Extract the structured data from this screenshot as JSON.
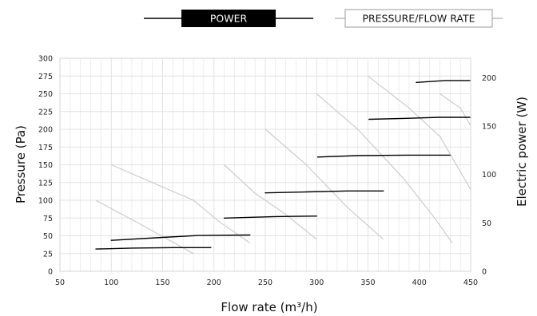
{
  "chart_data": {
    "type": "line",
    "title": "",
    "legend": {
      "placement": "top",
      "entries": [
        {
          "label": "POWER",
          "style": "filled-black",
          "line_color": "#000000"
        },
        {
          "label": "PRESSURE/FLOW RATE",
          "style": "outlined",
          "line_color": "#bbbbbb"
        }
      ]
    },
    "xlabel": "Flow rate (m³/h)",
    "ylabel_left": "Pressure (Pa)",
    "ylabel_right": "Electric power (W)",
    "xlim": [
      50,
      450
    ],
    "ylim_left": [
      0,
      300
    ],
    "ylim_right": [
      0,
      220
    ],
    "x_ticks": [
      50,
      100,
      150,
      200,
      250,
      300,
      350,
      400,
      450
    ],
    "y_left_ticks": [
      0,
      25,
      50,
      75,
      100,
      125,
      150,
      175,
      200,
      225,
      250,
      275,
      300
    ],
    "y_right_ticks": [
      0,
      50,
      100,
      150,
      200
    ],
    "x_tick_labels": [
      "50",
      "100",
      "150",
      "200",
      "250",
      "300",
      "350",
      "400",
      "450"
    ],
    "y_left_tick_labels": [
      "0",
      "25",
      "50",
      "75",
      "100",
      "125",
      "150",
      "175",
      "200",
      "225",
      "250",
      "275",
      "300"
    ],
    "y_right_tick_labels": [
      "0",
      "50",
      "100",
      "150",
      "200"
    ],
    "grid": true,
    "colors": {
      "power": "#000000",
      "pressure": "#cccccc",
      "grid": "#e2e2e2"
    },
    "pressure_series": [
      {
        "points": [
          [
            85,
            100
          ],
          [
            130,
            65
          ],
          [
            180,
            25
          ]
        ]
      },
      {
        "points": [
          [
            100,
            150
          ],
          [
            140,
            125
          ],
          [
            180,
            100
          ],
          [
            205,
            70
          ],
          [
            235,
            40
          ]
        ]
      },
      {
        "points": [
          [
            210,
            150
          ],
          [
            240,
            110
          ],
          [
            270,
            80
          ],
          [
            300,
            45
          ]
        ]
      },
      {
        "points": [
          [
            250,
            200
          ],
          [
            290,
            150
          ],
          [
            330,
            90
          ],
          [
            365,
            45
          ]
        ]
      },
      {
        "points": [
          [
            300,
            250
          ],
          [
            340,
            200
          ],
          [
            385,
            130
          ],
          [
            415,
            75
          ],
          [
            432,
            40
          ]
        ]
      },
      {
        "points": [
          [
            350,
            275
          ],
          [
            390,
            230
          ],
          [
            420,
            190
          ],
          [
            450,
            115
          ]
        ]
      },
      {
        "points": [
          [
            420,
            250
          ],
          [
            440,
            230
          ],
          [
            450,
            205
          ]
        ]
      }
    ],
    "power_series": [
      {
        "points": [
          [
            85,
            23
          ],
          [
            120,
            24
          ],
          [
            160,
            24.5
          ],
          [
            197,
            24.5
          ]
        ]
      },
      {
        "points": [
          [
            100,
            32
          ],
          [
            150,
            35
          ],
          [
            185,
            37
          ],
          [
            235,
            37.5
          ]
        ]
      },
      {
        "points": [
          [
            210,
            55
          ],
          [
            260,
            56.5
          ],
          [
            300,
            57
          ]
        ]
      },
      {
        "points": [
          [
            250,
            81
          ],
          [
            290,
            82
          ],
          [
            330,
            83
          ],
          [
            365,
            83
          ]
        ]
      },
      {
        "points": [
          [
            301,
            118
          ],
          [
            340,
            119.5
          ],
          [
            390,
            120
          ],
          [
            430,
            120
          ]
        ]
      },
      {
        "points": [
          [
            351,
            157
          ],
          [
            390,
            158
          ],
          [
            420,
            159
          ],
          [
            450,
            159
          ]
        ]
      },
      {
        "points": [
          [
            397,
            195
          ],
          [
            425,
            197
          ],
          [
            450,
            197
          ]
        ]
      }
    ]
  }
}
